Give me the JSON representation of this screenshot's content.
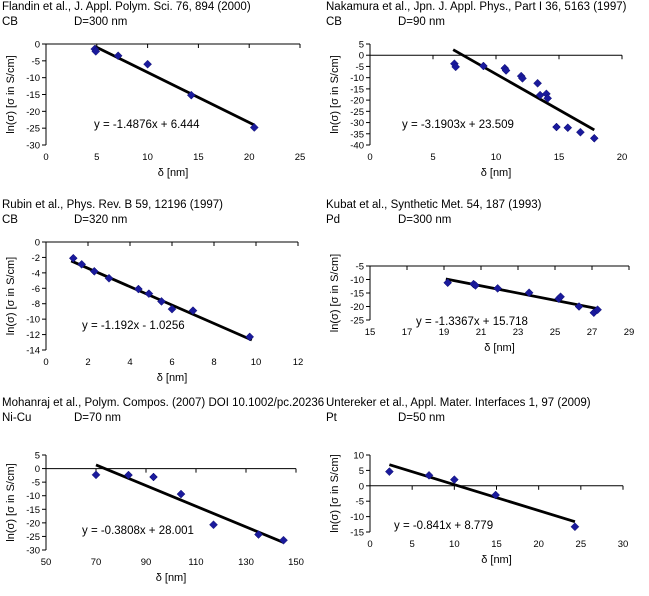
{
  "chart_data": [
    {
      "type": "scatter",
      "title": "Flandin et al., J. Appl. Polym. Sci. 76, 894 (2000)",
      "material": "CB",
      "diameter": "D=300 nm",
      "xlabel": "δ [nm]",
      "ylabel": "ln(σ) [σ in S/cm]",
      "xlim": [
        0,
        25
      ],
      "xticks": [
        0,
        5,
        10,
        15,
        20,
        25
      ],
      "ylim": [
        -30,
        0
      ],
      "yticks": [
        0,
        -5,
        -10,
        -15,
        -20,
        -25,
        -30
      ],
      "points": [
        [
          4.8,
          -1.5
        ],
        [
          4.9,
          -2.2
        ],
        [
          7.1,
          -3.5
        ],
        [
          10.0,
          -6.0
        ],
        [
          14.3,
          -15.2
        ],
        [
          20.5,
          -24.8
        ]
      ],
      "fit": {
        "slope": -1.4876,
        "intercept": 6.444,
        "x_range": [
          4.8,
          20.5
        ]
      },
      "equation": "y = -1.4876x + 6.444"
    },
    {
      "type": "scatter",
      "title": "Nakamura et al., Jpn. J. Appl. Phys., Part I 36, 5163 (1997)",
      "material": "CB",
      "diameter": "D=90 nm",
      "xlabel": "δ [nm]",
      "ylabel": "ln(σ) [σ in S/cm]",
      "xlim": [
        0,
        20
      ],
      "xticks": [
        0,
        5,
        10,
        15,
        20
      ],
      "ylim": [
        -40,
        5
      ],
      "yticks": [
        5,
        0,
        -5,
        -10,
        -15,
        -20,
        -25,
        -30,
        -35,
        -40
      ],
      "points": [
        [
          6.7,
          -3.8
        ],
        [
          6.8,
          -5.2
        ],
        [
          9.0,
          -4.8
        ],
        [
          10.7,
          -5.8
        ],
        [
          10.8,
          -6.8
        ],
        [
          12.0,
          -9.3
        ],
        [
          12.1,
          -10.3
        ],
        [
          13.3,
          -12.5
        ],
        [
          13.5,
          -17.8
        ],
        [
          14.0,
          -17.2
        ],
        [
          14.1,
          -19.2
        ],
        [
          14.8,
          -32.0
        ],
        [
          15.7,
          -32.3
        ],
        [
          16.7,
          -34.3
        ],
        [
          17.8,
          -37.0
        ]
      ],
      "fit": {
        "slope": -3.1903,
        "intercept": 23.509,
        "x_range": [
          6.6,
          17.8
        ]
      },
      "equation": "y = -3.1903x + 23.509"
    },
    {
      "type": "scatter",
      "title": "Rubin et al., Phys. Rev. B 59, 12196 (1997)",
      "material": "CB",
      "diameter": "D=320 nm",
      "xlabel": "δ [nm]",
      "ylabel": "ln(σ) [σ in S/cm]",
      "xlim": [
        0,
        12
      ],
      "xticks": [
        0,
        2,
        4,
        6,
        8,
        10,
        12
      ],
      "ylim": [
        -14,
        0
      ],
      "yticks": [
        0,
        -2,
        -4,
        -6,
        -8,
        -10,
        -12,
        -14
      ],
      "points": [
        [
          1.3,
          -2.1
        ],
        [
          1.7,
          -2.9
        ],
        [
          2.3,
          -3.8
        ],
        [
          3.0,
          -4.7
        ],
        [
          4.4,
          -6.1
        ],
        [
          4.9,
          -6.7
        ],
        [
          5.5,
          -7.7
        ],
        [
          6.0,
          -8.7
        ],
        [
          7.0,
          -8.9
        ],
        [
          9.7,
          -12.3
        ]
      ],
      "fit": {
        "slope": -1.192,
        "intercept": -1.0256,
        "x_range": [
          1.2,
          9.8
        ]
      },
      "equation": "y = -1.192x - 1.0256"
    },
    {
      "type": "scatter",
      "title": "Kubat et al., Synthetic Met. 54, 187 (1993)",
      "material": "Pd",
      "diameter": "D=300 nm",
      "xlabel": "δ [nm]",
      "ylabel": "ln(σ) [σ in S/cm]",
      "xlim": [
        15,
        29
      ],
      "xticks": [
        15,
        17,
        19,
        21,
        23,
        25,
        27,
        29
      ],
      "ylim": [
        -25,
        -5
      ],
      "yticks": [
        -5,
        -10,
        -15,
        -20,
        -25
      ],
      "points": [
        [
          19.2,
          -11.2
        ],
        [
          20.6,
          -11.7
        ],
        [
          20.7,
          -12.2
        ],
        [
          21.9,
          -13.3
        ],
        [
          23.6,
          -14.9
        ],
        [
          25.2,
          -17.1
        ],
        [
          25.3,
          -16.4
        ],
        [
          26.3,
          -20.0
        ],
        [
          27.1,
          -22.3
        ],
        [
          27.3,
          -21.2
        ]
      ],
      "fit": {
        "slope": -1.3367,
        "intercept": 15.718,
        "x_range": [
          19.1,
          27.4
        ]
      },
      "equation": "y = -1.3367x + 15.718"
    },
    {
      "type": "scatter",
      "title": "Mohanraj et al., Polym. Compos. (2007) DOI 10.1002/pc.20236",
      "material": "Ni-Cu",
      "diameter": "D=70 nm",
      "xlabel": "δ [nm]",
      "ylabel": "ln(σ) [σ in S/cm]",
      "xlim": [
        50,
        150
      ],
      "xticks": [
        50,
        70,
        90,
        110,
        130,
        150
      ],
      "ylim": [
        -30,
        5
      ],
      "yticks": [
        5,
        0,
        -5,
        -10,
        -15,
        -20,
        -25,
        -30
      ],
      "points": [
        [
          70,
          -2.3
        ],
        [
          83,
          -2.4
        ],
        [
          93,
          -3.1
        ],
        [
          104,
          -9.4
        ],
        [
          117,
          -20.7
        ],
        [
          135,
          -24.3
        ],
        [
          145,
          -26.4
        ]
      ],
      "fit": {
        "slope": -0.3808,
        "intercept": 28.001,
        "x_range": [
          70,
          145
        ]
      },
      "equation": "y = -0.3808x + 28.001"
    },
    {
      "type": "scatter",
      "title": "Untereker et al., Appl. Mater. Interfaces 1, 97 (2009)",
      "material": "Pt",
      "diameter": "D=50 nm",
      "xlabel": "δ [nm]",
      "ylabel": "ln(σ) [σ in S/cm]",
      "xlim": [
        0,
        30
      ],
      "xticks": [
        0,
        5,
        10,
        15,
        20,
        25,
        30
      ],
      "ylim": [
        -15,
        10
      ],
      "yticks": [
        10,
        5,
        0,
        -5,
        -10,
        -15
      ],
      "points": [
        [
          2.3,
          4.6
        ],
        [
          7.0,
          3.4
        ],
        [
          10.0,
          2.0
        ],
        [
          14.9,
          -3.0
        ],
        [
          24.3,
          -13.3
        ]
      ],
      "fit": {
        "slope": -0.841,
        "intercept": 8.779,
        "x_range": [
          2.3,
          24.3
        ]
      },
      "equation": "y = -0.841x + 8.779"
    }
  ]
}
